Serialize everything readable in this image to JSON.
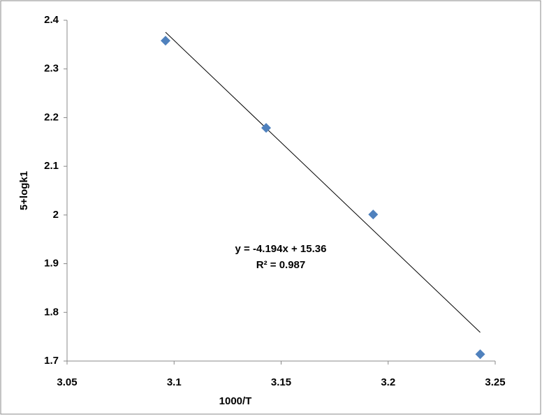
{
  "chart_data": {
    "type": "scatter",
    "x_label": "1000/T",
    "y_label": "5+logk1",
    "series": [
      {
        "color": "#4f81bd",
        "x": [
          3.096,
          3.143,
          3.193,
          3.243
        ],
        "values": [
          2.358,
          2.179,
          2.001,
          1.714
        ]
      }
    ],
    "xlim": [
      3.05,
      3.25
    ],
    "xticks": [
      3.05,
      3.1,
      3.15,
      3.2,
      3.25
    ],
    "ylim": [
      1.7,
      2.4
    ],
    "yticks": [
      1.7,
      1.8,
      1.9,
      2,
      2.1,
      2.2,
      2.3,
      2.4
    ],
    "trendline": {
      "equation": "y = -4.194x + 15.36",
      "r_squared": "R² = 0.987",
      "slope": -4.194,
      "intercept": 15.36,
      "color": "#000000"
    }
  }
}
